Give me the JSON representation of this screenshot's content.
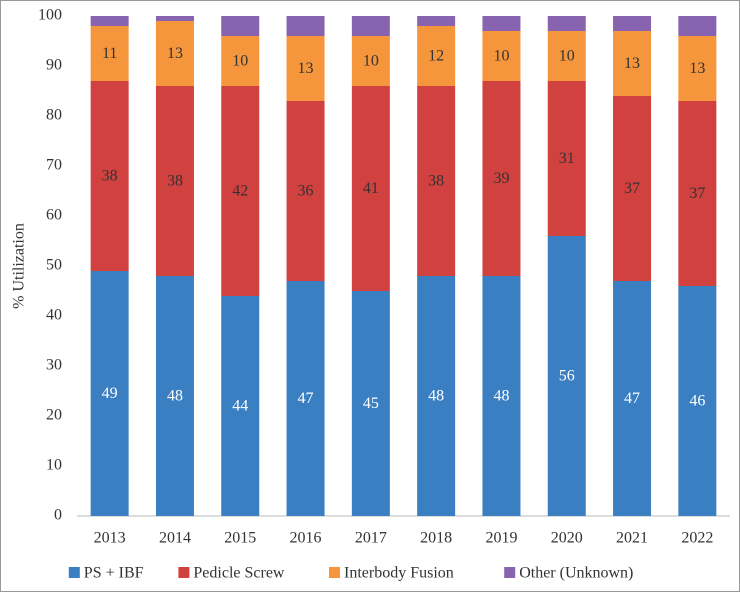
{
  "chart_data": {
    "type": "stacked_bar",
    "y_label": "% Utilization",
    "categories": [
      "2013",
      "2014",
      "2015",
      "2016",
      "2017",
      "2018",
      "2019",
      "2020",
      "2021",
      "2022"
    ],
    "series": [
      {
        "name": "PS + IBF",
        "color": "#3b7fc3",
        "label_color": "#ffffff",
        "values": [
          49,
          48,
          44,
          47,
          45,
          48,
          48,
          56,
          47,
          46
        ]
      },
      {
        "name": "Pedicle Screw",
        "color": "#d1413f",
        "label_color": "#333333",
        "values": [
          38,
          38,
          42,
          36,
          41,
          38,
          39,
          31,
          37,
          37
        ]
      },
      {
        "name": "Interbody Fusion",
        "color": "#f6963c",
        "label_color": "#333333",
        "values": [
          11,
          13,
          10,
          13,
          10,
          12,
          10,
          10,
          13,
          13
        ]
      },
      {
        "name": "Other (Unknown)",
        "color": "#8863b0",
        "values": [
          2,
          1,
          4,
          4,
          4,
          2,
          3,
          3,
          3,
          4
        ]
      }
    ],
    "ylim": [
      0,
      100
    ],
    "yticks": [
      0,
      10,
      20,
      30,
      40,
      50,
      60,
      70,
      80,
      90,
      100
    ],
    "grid": false,
    "legend": "bottom"
  }
}
